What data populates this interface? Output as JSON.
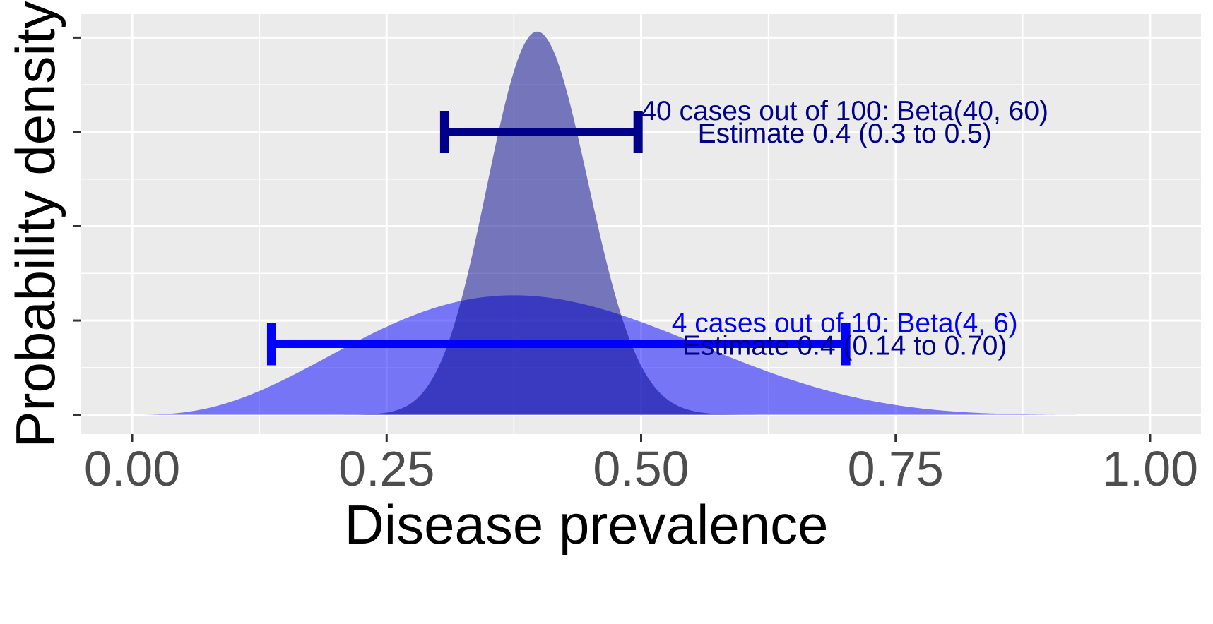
{
  "chart_data": {
    "type": "area",
    "xlabel": "Disease prevalence",
    "ylabel": "Probability density",
    "xlim": [
      -0.05,
      1.05
    ],
    "ylim": [
      -0.41,
      8.5
    ],
    "x_ticks": [
      0.0,
      0.25,
      0.5,
      0.75,
      1.0
    ],
    "x_tick_labels": [
      "0.00",
      "0.25",
      "0.50",
      "0.75",
      "1.00"
    ],
    "y_ticks": [
      0,
      2,
      4,
      6,
      8
    ],
    "y_tick_labels": [
      "",
      "",
      "",
      "",
      ""
    ],
    "grid": true,
    "legend": "none",
    "series": [
      {
        "distribution": "Beta(4, 6)",
        "alpha": 4,
        "beta": 6,
        "fill": "#0000ff",
        "fill_opacity": 0.5,
        "interval": {
          "low": 0.137,
          "high": 0.701,
          "y": 1.5
        },
        "bar_color": "#0000ff",
        "labels": [
          "4 cases out of 10: Beta(4, 6)",
          "Estimate 0.4 (0.14 to 0.70)"
        ],
        "label_colors": [
          "#0000ff",
          "#00008b"
        ],
        "label_x": 0.7
      },
      {
        "distribution": "Beta(40, 60)",
        "alpha": 40,
        "beta": 60,
        "fill": "#00008b",
        "fill_opacity": 0.5,
        "interval": {
          "low": 0.307,
          "high": 0.497,
          "y": 6.0
        },
        "bar_color": "#00008b",
        "labels": [
          "40 cases out of 100: Beta(40, 60)",
          "Estimate 0.4 (0.3 to 0.5)"
        ],
        "label_colors": [
          "#00008b",
          "#00008b"
        ],
        "label_x": 0.7
      }
    ],
    "colors": {
      "panel_bg": "#ebebeb",
      "grid_major": "#ffffff",
      "grid_minor": "#f7f7f7"
    }
  }
}
